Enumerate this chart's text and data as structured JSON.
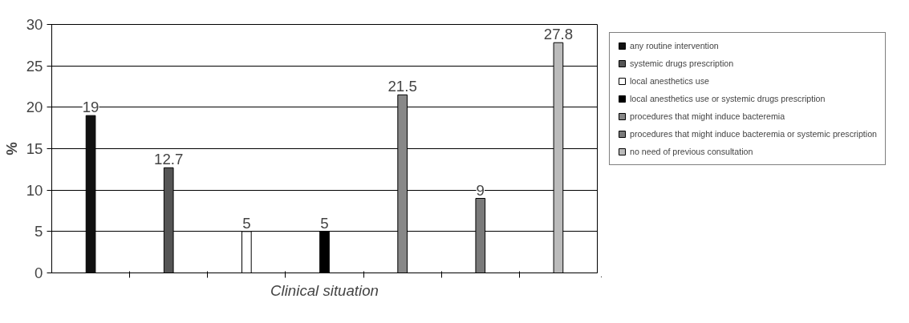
{
  "chart_data": {
    "type": "bar",
    "xlabel": "Clinical situation",
    "ylabel": "%",
    "categories": [
      null,
      null,
      null,
      null,
      null,
      null,
      null
    ],
    "series": [
      {
        "name": "any routine intervention",
        "color": "#111111",
        "values": [
          19,
          null,
          null,
          null,
          null,
          null,
          null
        ]
      },
      {
        "name": "systemic drugs prescription",
        "color": "#555555",
        "values": [
          null,
          12.7,
          null,
          null,
          null,
          null,
          null
        ]
      },
      {
        "name": "local anesthetics use",
        "color": "#ffffff",
        "values": [
          null,
          null,
          5,
          null,
          null,
          null,
          null
        ]
      },
      {
        "name": "local anesthetics use or systemic drugs prescription",
        "color": "#000000",
        "values": [
          null,
          null,
          null,
          5,
          null,
          null,
          null
        ]
      },
      {
        "name": "procedures that might induce bacteremia",
        "color": "#888888",
        "values": [
          null,
          null,
          null,
          null,
          21.5,
          null,
          null
        ]
      },
      {
        "name": "procedures that might induce bacteremia or systemic prescription",
        "color": "#7a7a7a",
        "values": [
          null,
          null,
          null,
          null,
          null,
          9,
          null
        ]
      },
      {
        "name": "no need of previous consultation",
        "color": "#bbbbbb",
        "values": [
          null,
          null,
          null,
          null,
          null,
          null,
          27.8
        ]
      }
    ],
    "ylim": [
      0,
      30
    ],
    "yticks": [
      0,
      5,
      10,
      15,
      20,
      25,
      30
    ],
    "grid": "y",
    "legend": "right",
    "data_labels": true
  }
}
